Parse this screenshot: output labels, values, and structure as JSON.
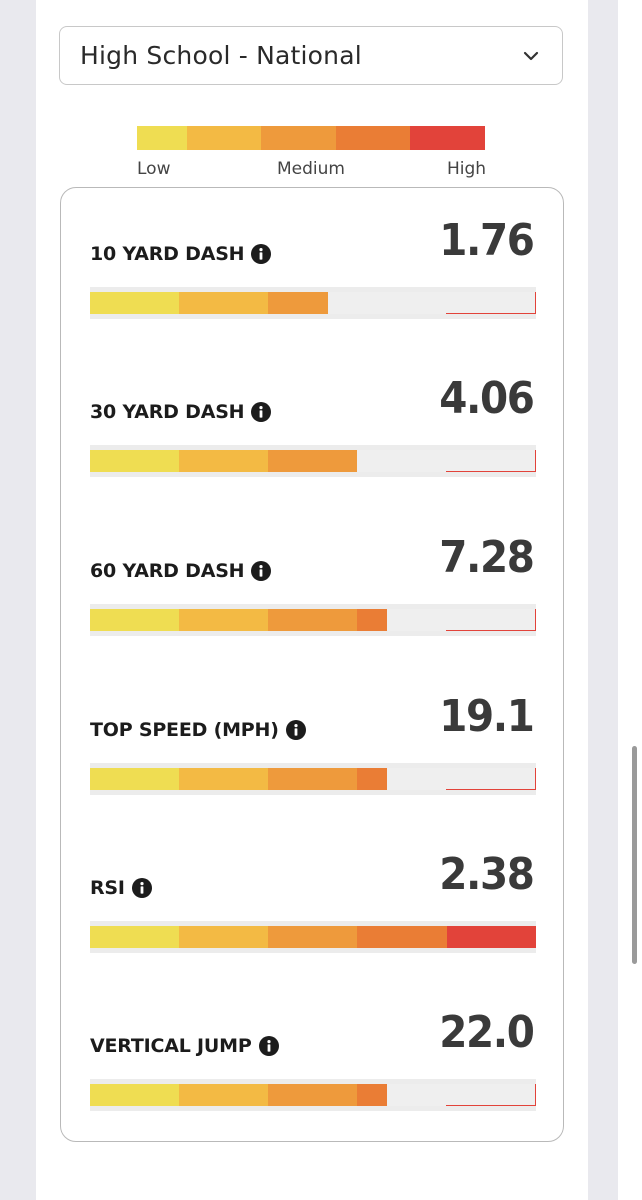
{
  "filter": {
    "selected": "High School - National",
    "chevron_icon": "chevron-down-icon"
  },
  "legend": {
    "low_label": "Low",
    "medium_label": "Medium",
    "high_label": "High",
    "segment_colors": [
      "#efdd52",
      "#efdd52",
      "#f3ba44",
      "#f3ba44",
      "#f3ba44",
      "#ee9a3c",
      "#ee9a3c",
      "#ee9a3c",
      "#ea7d35",
      "#ea7d35",
      "#ea7d35",
      "#e2433a",
      "#e2433a",
      "#e2433a"
    ]
  },
  "scale": {
    "segments": 15,
    "segment_colors": [
      "#efdd52",
      "#efdd52",
      "#efdd52",
      "#f3ba44",
      "#f3ba44",
      "#f3ba44",
      "#ee9a3c",
      "#ee9a3c",
      "#ee9a3c",
      "#ea7d35",
      "#ea7d35",
      "#ea7d35",
      "#e2433a",
      "#e2433a",
      "#e2433a"
    ]
  },
  "metrics": [
    {
      "label": "10 YARD DASH",
      "value": "1.76",
      "level_segments": 8,
      "info_icon": "info-icon"
    },
    {
      "label": "30 YARD DASH",
      "value": "4.06",
      "level_segments": 9,
      "info_icon": "info-icon"
    },
    {
      "label": "60 YARD DASH",
      "value": "7.28",
      "level_segments": 10,
      "info_icon": "info-icon"
    },
    {
      "label": "TOP SPEED (MPH)",
      "value": "19.1",
      "level_segments": 10,
      "info_icon": "info-icon"
    },
    {
      "label": "RSI",
      "value": "2.38",
      "level_segments": 15,
      "info_icon": "info-icon"
    },
    {
      "label": "VERTICAL JUMP",
      "value": "22.0",
      "level_segments": 10,
      "info_icon": "info-icon"
    }
  ]
}
